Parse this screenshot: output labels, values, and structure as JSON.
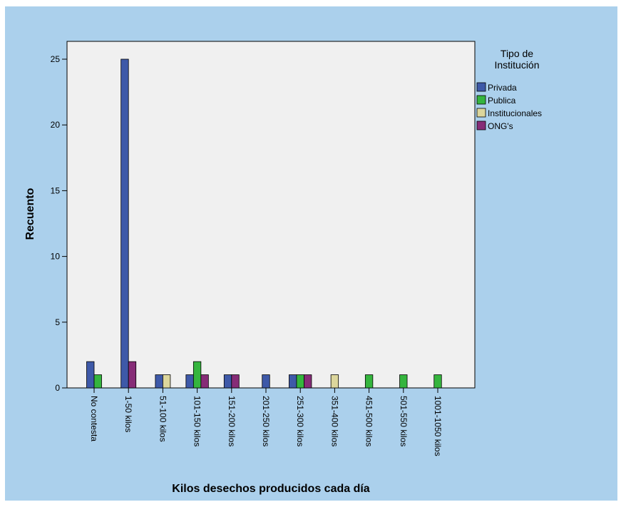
{
  "chart_data": {
    "type": "bar",
    "title": "",
    "xlabel": "Kilos desechos producidos cada día",
    "ylabel": "Recuento",
    "ylim": [
      0,
      27
    ],
    "yticks": [
      0,
      5,
      10,
      15,
      20,
      25
    ],
    "categories": [
      "No contesta",
      "1-50 kilos",
      "51-100 kilos",
      "101-150 kilos",
      "151-200 kilos",
      "201-250 kilos",
      "251-300 kilos",
      "351-400 kilos",
      "451-500 kilos",
      "501-550 kilos",
      "1001-1050 kilos"
    ],
    "legend_title": "Tipo de\nInstitución",
    "legend_position": "top-right",
    "series": [
      {
        "name": "Privada",
        "color": "#3e59a8",
        "values": [
          2,
          25,
          1,
          1,
          1,
          1,
          1,
          0,
          0,
          0,
          0
        ]
      },
      {
        "name": "Publica",
        "color": "#35b53e",
        "values": [
          1,
          0,
          0,
          2,
          0,
          0,
          1,
          0,
          1,
          1,
          1
        ]
      },
      {
        "name": "Institucionales",
        "color": "#dcd69c",
        "values": [
          0,
          0,
          1,
          0,
          0,
          0,
          0,
          1,
          0,
          0,
          0
        ]
      },
      {
        "name": "ONG's",
        "color": "#862c77",
        "values": [
          0,
          2,
          0,
          1,
          1,
          0,
          1,
          0,
          0,
          0,
          0
        ]
      }
    ],
    "colors": {
      "background": "#abd0ec",
      "plot_area": "#f0f0f0"
    }
  }
}
